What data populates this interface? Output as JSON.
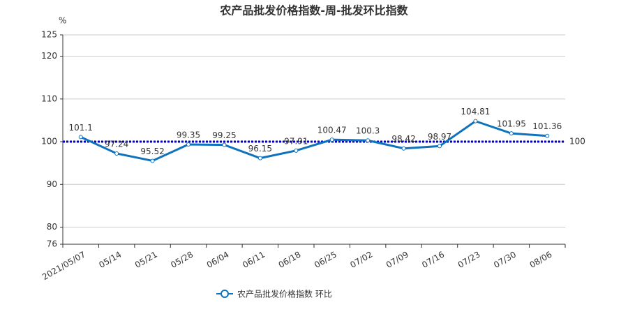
{
  "chart_data": {
    "type": "line",
    "title": "农产品批发价格指数-周-批发环比指数",
    "y_unit": "%",
    "categories": [
      "2021/05/07",
      "05/14",
      "05/21",
      "05/28",
      "06/04",
      "06/11",
      "06/18",
      "06/25",
      "07/02",
      "07/09",
      "07/16",
      "07/23",
      "07/30",
      "08/06"
    ],
    "series": [
      {
        "name": "农产品批发价格指数  环比",
        "color": "#0e72bd",
        "values": [
          101.1,
          97.24,
          95.52,
          99.35,
          99.25,
          96.15,
          97.91,
          100.47,
          100.3,
          98.42,
          98.97,
          104.81,
          101.95,
          101.36
        ]
      }
    ],
    "ylim": [
      76,
      125
    ],
    "yticks": [
      76,
      80,
      90,
      100,
      110,
      120,
      125
    ],
    "grid": true,
    "reference_line": 100,
    "reference_color": "#0000c8",
    "legend": "bottom"
  }
}
